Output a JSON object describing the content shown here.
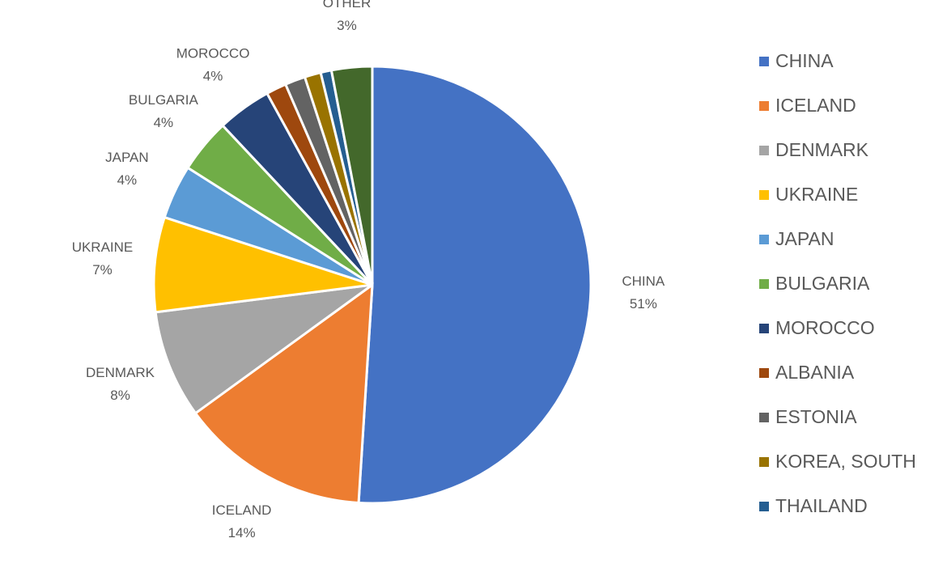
{
  "chart_data": {
    "type": "pie",
    "categories": [
      "CHINA",
      "ICELAND",
      "DENMARK",
      "UKRAINE",
      "JAPAN",
      "BULGARIA",
      "MOROCCO",
      "ALBANIA",
      "ESTONIA",
      "KOREA, SOUTH",
      "THAILAND",
      "OTHER"
    ],
    "values": [
      51,
      14,
      8,
      7,
      4,
      4,
      4,
      1.5,
      1.5,
      1.2,
      0.8,
      3
    ],
    "value_labels": [
      "51%",
      "14%",
      "8%",
      "7%",
      "4%",
      "4%",
      "4%",
      null,
      null,
      null,
      null,
      "3%"
    ],
    "colors": [
      "#4472c4",
      "#ed7d31",
      "#a5a5a5",
      "#ffc000",
      "#5b9bd5",
      "#70ad47",
      "#264478",
      "#9e480e",
      "#636363",
      "#997300",
      "#255e91",
      "#43682b"
    ],
    "legend": [
      "CHINA",
      "ICELAND",
      "DENMARK",
      "UKRAINE",
      "JAPAN",
      "BULGARIA",
      "MOROCCO",
      "ALBANIA",
      "ESTONIA",
      "KOREA, SOUTH",
      "THAILAND"
    ],
    "legend_position": "right"
  }
}
